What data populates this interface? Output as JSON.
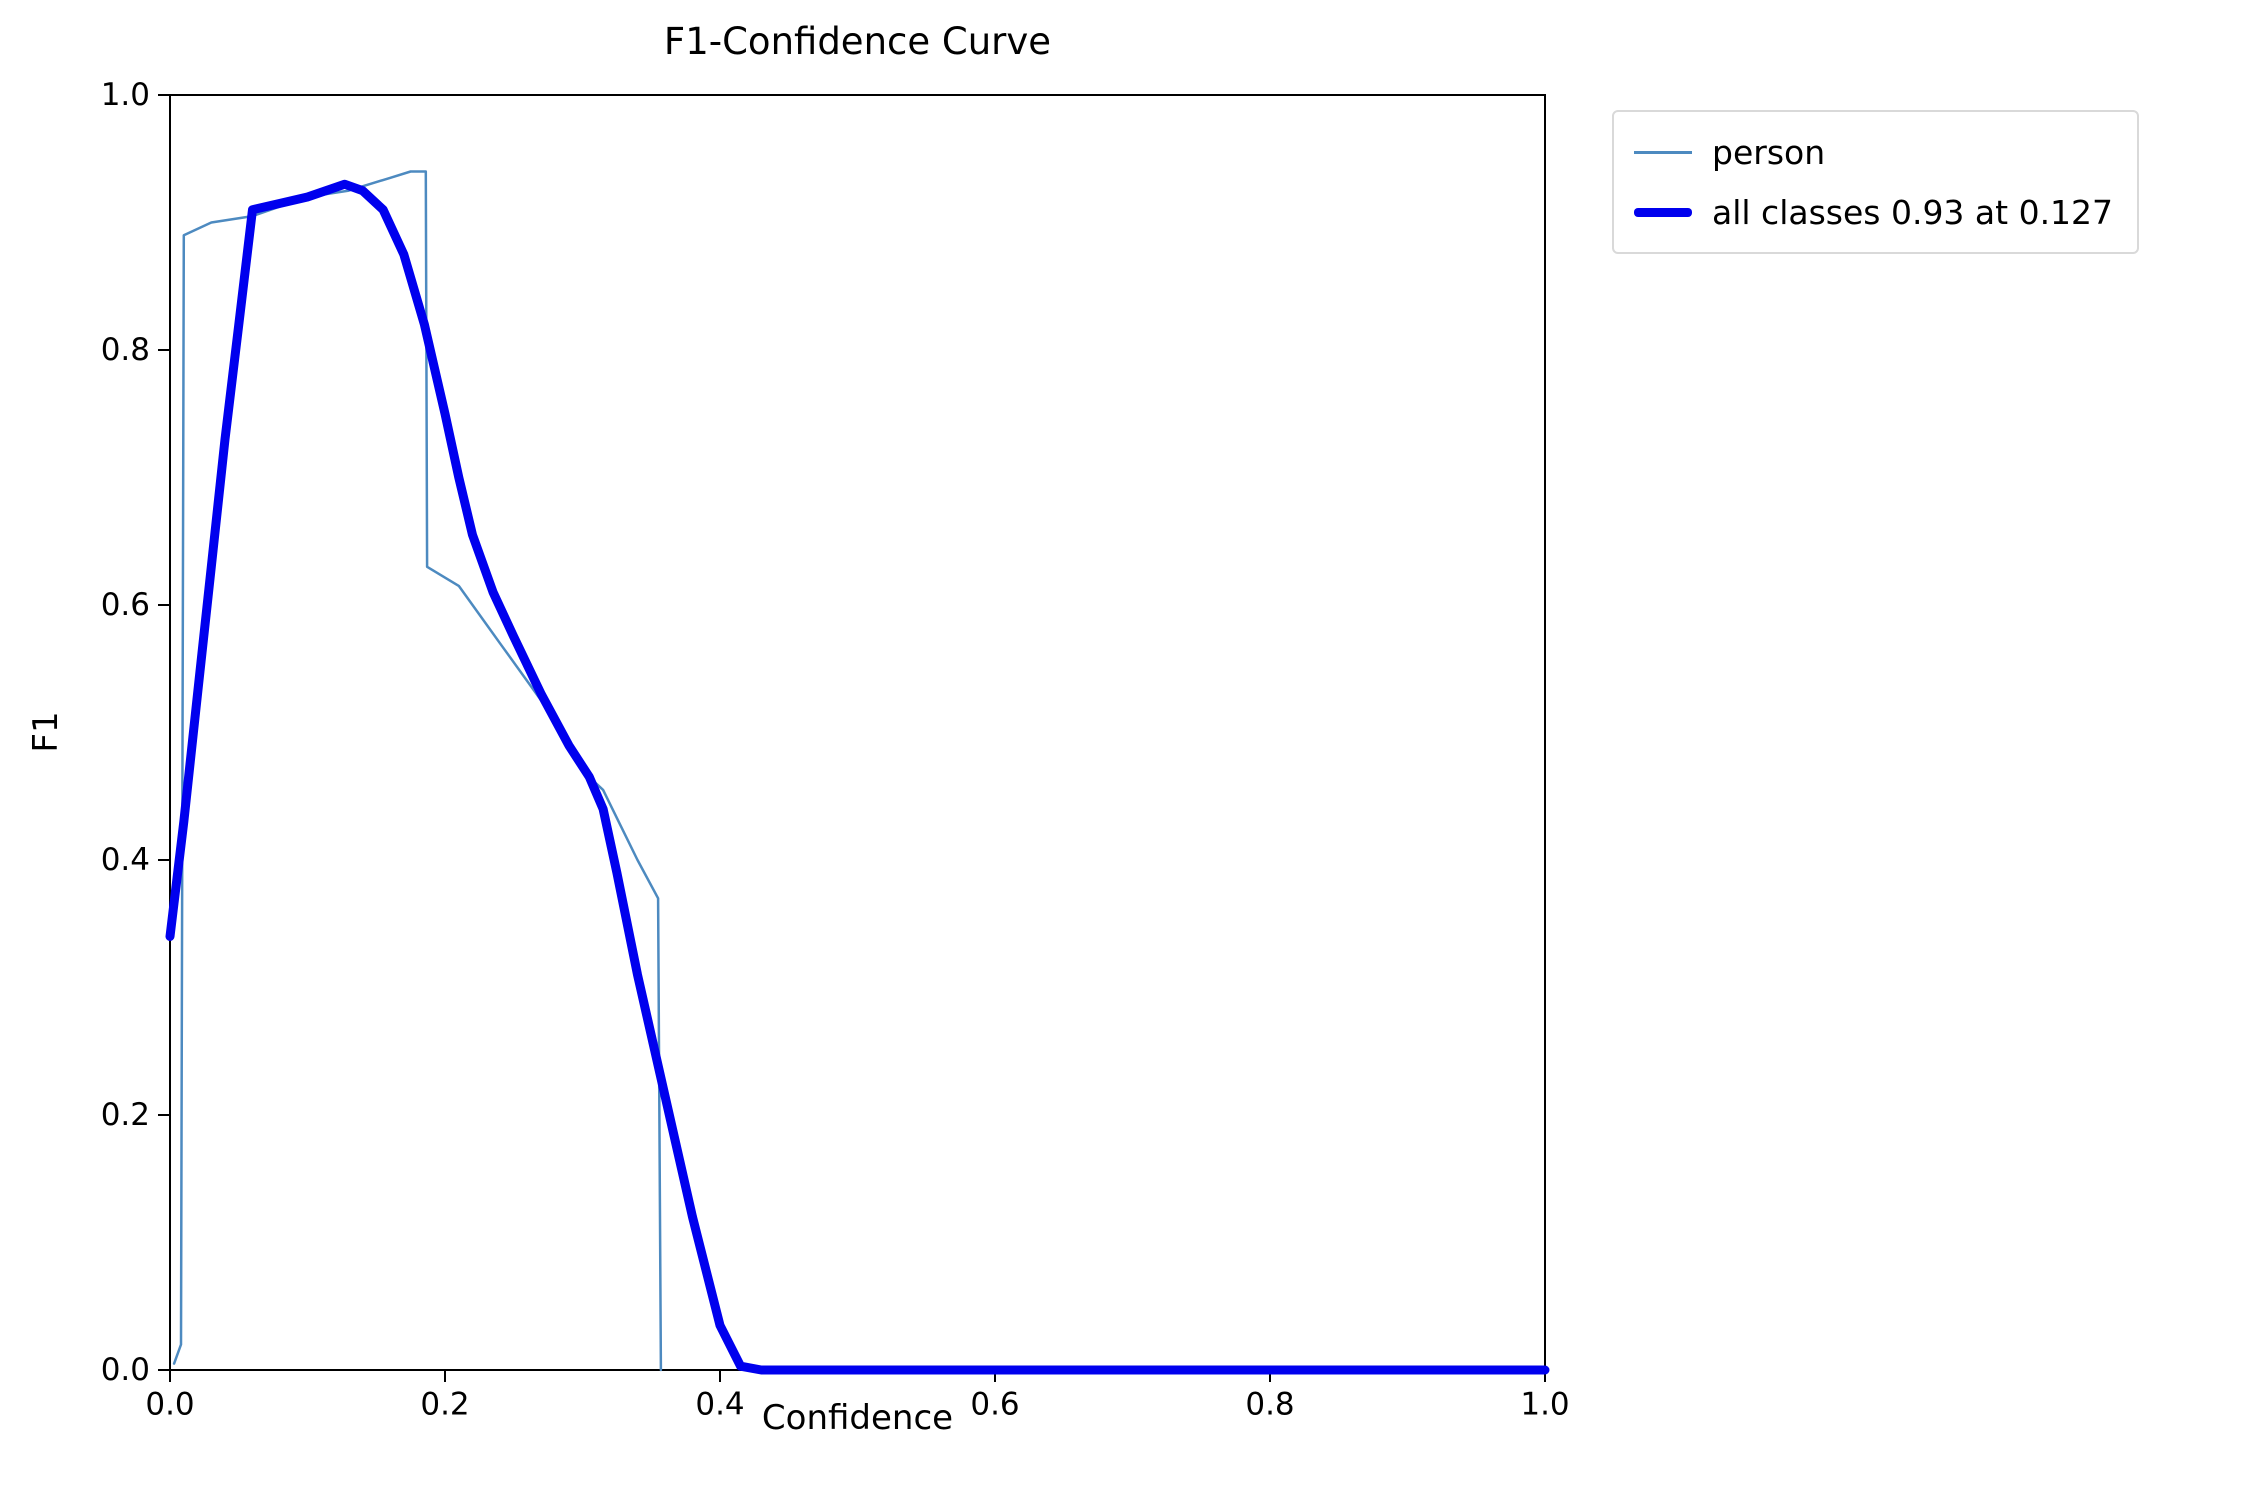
{
  "chart_data": {
    "type": "line",
    "title": "F1-Confidence Curve",
    "xlabel": "Confidence",
    "ylabel": "F1",
    "xlim": [
      0.0,
      1.0
    ],
    "ylim": [
      0.0,
      1.0
    ],
    "xticks": [
      "0.0",
      "0.2",
      "0.4",
      "0.6",
      "0.8",
      "1.0"
    ],
    "yticks": [
      "0.0",
      "0.2",
      "0.4",
      "0.6",
      "0.8",
      "1.0"
    ],
    "grid": false,
    "legend_position": "outside-upper-right",
    "axis_color": "#000000",
    "series": [
      {
        "name": "person",
        "color": "#4d8ac0",
        "linewidth": 2.5,
        "points": [
          [
            0.003,
            0.005
          ],
          [
            0.008,
            0.02
          ],
          [
            0.01,
            0.89
          ],
          [
            0.03,
            0.9
          ],
          [
            0.06,
            0.905
          ],
          [
            0.1,
            0.92
          ],
          [
            0.13,
            0.925
          ],
          [
            0.16,
            0.935
          ],
          [
            0.175,
            0.94
          ],
          [
            0.186,
            0.94
          ],
          [
            0.187,
            0.63
          ],
          [
            0.21,
            0.615
          ],
          [
            0.24,
            0.57
          ],
          [
            0.27,
            0.525
          ],
          [
            0.3,
            0.47
          ],
          [
            0.315,
            0.455
          ],
          [
            0.34,
            0.4
          ],
          [
            0.355,
            0.37
          ],
          [
            0.357,
            0.0
          ]
        ]
      },
      {
        "name": "all classes 0.93 at 0.127",
        "color": "#0000ee",
        "linewidth": 9,
        "points": [
          [
            0.0,
            0.34
          ],
          [
            0.01,
            0.43
          ],
          [
            0.02,
            0.53
          ],
          [
            0.03,
            0.63
          ],
          [
            0.04,
            0.73
          ],
          [
            0.05,
            0.82
          ],
          [
            0.06,
            0.91
          ],
          [
            0.08,
            0.915
          ],
          [
            0.1,
            0.92
          ],
          [
            0.127,
            0.93
          ],
          [
            0.14,
            0.925
          ],
          [
            0.155,
            0.91
          ],
          [
            0.17,
            0.875
          ],
          [
            0.185,
            0.82
          ],
          [
            0.2,
            0.75
          ],
          [
            0.21,
            0.7
          ],
          [
            0.22,
            0.655
          ],
          [
            0.235,
            0.61
          ],
          [
            0.25,
            0.575
          ],
          [
            0.27,
            0.53
          ],
          [
            0.29,
            0.49
          ],
          [
            0.305,
            0.465
          ],
          [
            0.315,
            0.44
          ],
          [
            0.325,
            0.39
          ],
          [
            0.34,
            0.31
          ],
          [
            0.36,
            0.215
          ],
          [
            0.38,
            0.12
          ],
          [
            0.4,
            0.035
          ],
          [
            0.415,
            0.003
          ],
          [
            0.43,
            0.0
          ],
          [
            1.0,
            0.0
          ]
        ]
      }
    ]
  }
}
